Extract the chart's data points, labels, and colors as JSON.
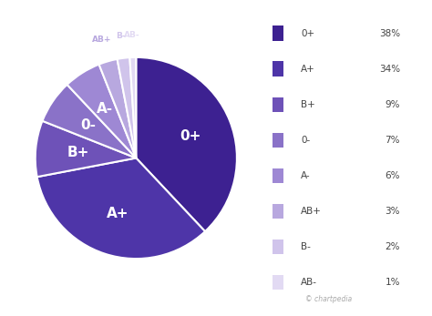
{
  "labels": [
    "0+",
    "A+",
    "B+",
    "0-",
    "A-",
    "AB+",
    "B-",
    "AB-"
  ],
  "values": [
    38,
    34,
    9,
    7,
    6,
    3,
    2,
    1
  ],
  "colors": [
    "#3d2191",
    "#4e35a8",
    "#6e52b8",
    "#8a72c8",
    "#9e88d4",
    "#b8a8df",
    "#d0c4eb",
    "#e2daf3"
  ],
  "legend_labels": [
    "0+",
    "A+",
    "B+",
    "0-",
    "A-",
    "AB+",
    "B-",
    "AB-"
  ],
  "legend_values": [
    "38%",
    "34%",
    "9%",
    "7%",
    "6%",
    "3%",
    "2%",
    "1%"
  ],
  "wedge_label_color": "#ffffff",
  "background_color": "#ffffff",
  "startangle": 90,
  "watermark": "© chartpedia"
}
